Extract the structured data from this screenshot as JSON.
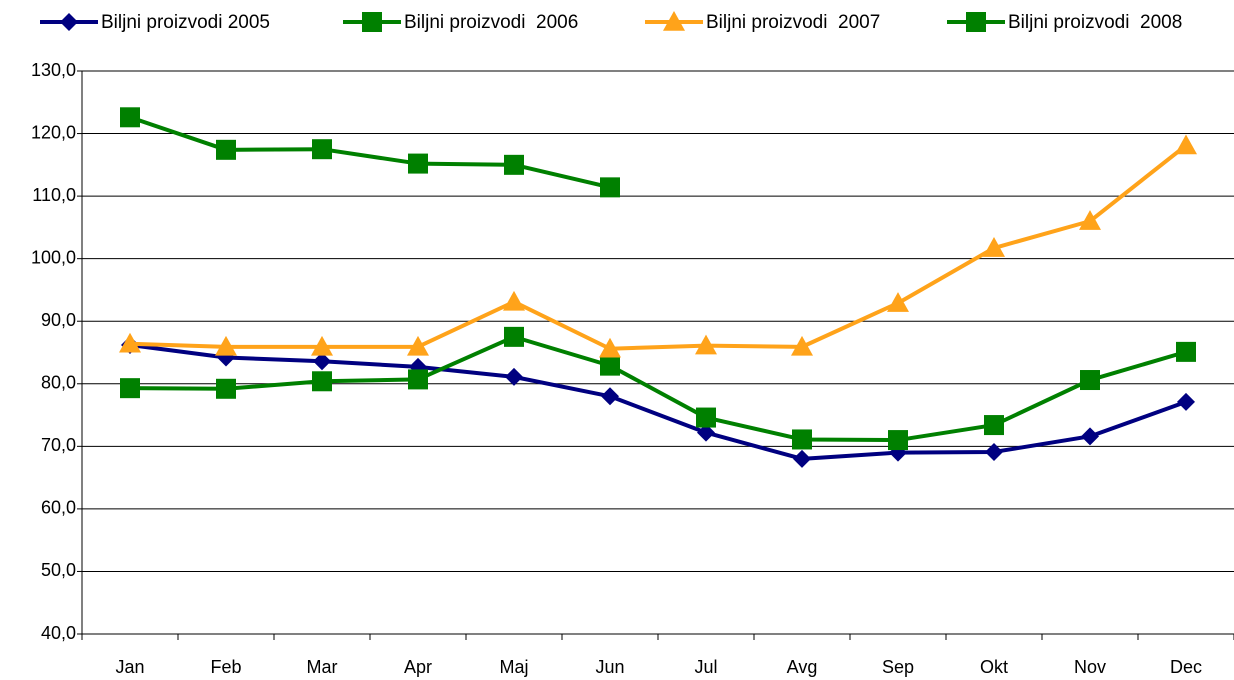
{
  "chart_data": {
    "type": "line",
    "categories": [
      "Jan",
      "Feb",
      "Mar",
      "Apr",
      "Maj",
      "Jun",
      "Jul",
      "Avg",
      "Sep",
      "Okt",
      "Nov",
      "Dec"
    ],
    "series": [
      {
        "name": "Biljni proizvodi 2005",
        "color": "#000080",
        "marker": "diamond",
        "values": [
          86.2,
          84.2,
          83.6,
          82.7,
          81.1,
          78.0,
          72.2,
          68.0,
          69.0,
          69.1,
          71.6,
          77.1
        ]
      },
      {
        "name": "Biljni proizvodi  2006",
        "color": "#008000",
        "marker": "square",
        "values": [
          79.3,
          79.2,
          80.4,
          80.7,
          87.5,
          82.9,
          74.6,
          71.1,
          71.0,
          73.4,
          80.6,
          85.1
        ]
      },
      {
        "name": "Biljni proizvodi  2007",
        "color": "#ffa31a",
        "marker": "triangle",
        "values": [
          86.4,
          85.9,
          85.9,
          85.9,
          93.1,
          85.6,
          86.1,
          85.9,
          92.9,
          101.7,
          106.0,
          118.1
        ]
      },
      {
        "name": "Biljni proizvodi  2008",
        "color": "#008000",
        "marker": "square",
        "values": [
          122.6,
          117.4,
          117.5,
          115.2,
          115.0,
          111.4,
          null,
          null,
          null,
          null,
          null,
          null
        ]
      }
    ],
    "ylim": [
      40,
      130
    ],
    "yticks": [
      {
        "value": 40,
        "label": "40,0"
      },
      {
        "value": 50,
        "label": "50,0"
      },
      {
        "value": 60,
        "label": "60,0"
      },
      {
        "value": 70,
        "label": "70,0"
      },
      {
        "value": 80,
        "label": "80,0"
      },
      {
        "value": 90,
        "label": "90,0"
      },
      {
        "value": 100,
        "label": "100,0"
      },
      {
        "value": 110,
        "label": "110,0"
      },
      {
        "value": 120,
        "label": "120,0"
      },
      {
        "value": 130,
        "label": "130,0"
      }
    ],
    "grid": true,
    "legend": "top"
  }
}
